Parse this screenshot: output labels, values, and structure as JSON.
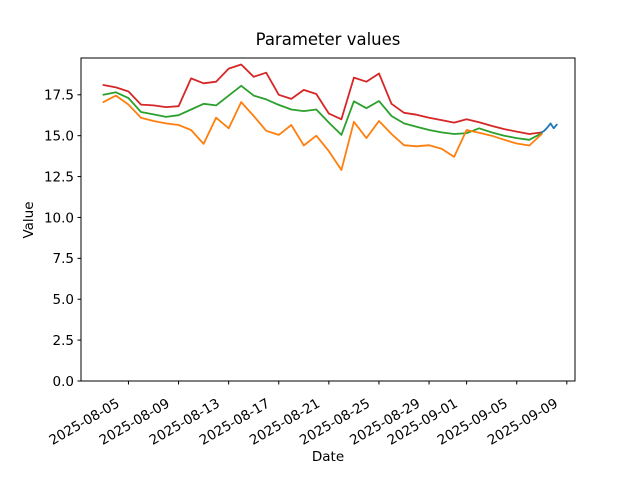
{
  "chart_data": {
    "type": "line",
    "title": "Parameter values",
    "xlabel": "Date",
    "ylabel": "Value",
    "ylim": [
      0,
      19.74
    ],
    "grid": false,
    "legend": "none",
    "background": "#ffffff",
    "axis_color": "#000000",
    "x_tick_labels": [
      "2025-08-05",
      "2025-08-09",
      "2025-08-13",
      "2025-08-17",
      "2025-08-21",
      "2025-08-25",
      "2025-08-29",
      "2025-09-01",
      "2025-09-05",
      "2025-09-09"
    ],
    "y_tick_labels": [
      "0.0",
      "2.5",
      "5.0",
      "7.5",
      "10.0",
      "12.5",
      "15.0",
      "17.5"
    ],
    "dates": [
      "2025-08-03",
      "2025-08-04",
      "2025-08-05",
      "2025-08-06",
      "2025-08-07",
      "2025-08-08",
      "2025-08-09",
      "2025-08-10",
      "2025-08-11",
      "2025-08-12",
      "2025-08-13",
      "2025-08-14",
      "2025-08-15",
      "2025-08-16",
      "2025-08-17",
      "2025-08-18",
      "2025-08-19",
      "2025-08-20",
      "2025-08-21",
      "2025-08-22",
      "2025-08-23",
      "2025-08-24",
      "2025-08-25",
      "2025-08-26",
      "2025-08-27",
      "2025-08-28",
      "2025-08-29",
      "2025-08-30",
      "2025-08-31",
      "2025-09-01",
      "2025-09-02",
      "2025-09-03",
      "2025-09-04",
      "2025-09-05",
      "2025-09-06",
      "2025-09-07"
    ],
    "series": [
      {
        "name": "red",
        "color": "#d62728",
        "values": [
          18.1,
          17.95,
          17.7,
          16.9,
          16.85,
          16.75,
          16.8,
          18.5,
          18.2,
          18.3,
          19.1,
          19.35,
          18.6,
          18.85,
          17.5,
          17.25,
          17.8,
          17.55,
          16.35,
          16.0,
          18.55,
          18.3,
          18.8,
          16.95,
          16.4,
          16.28,
          16.1,
          15.95,
          15.8,
          16.0,
          15.82,
          15.6,
          15.4,
          15.25,
          15.1,
          15.2
        ]
      },
      {
        "name": "green",
        "color": "#2ca02c",
        "values": [
          17.5,
          17.65,
          17.3,
          16.45,
          16.3,
          16.15,
          16.25,
          16.6,
          16.95,
          16.85,
          17.45,
          18.05,
          17.45,
          17.22,
          16.88,
          16.6,
          16.5,
          16.6,
          15.8,
          15.05,
          17.1,
          16.68,
          17.12,
          16.2,
          15.75,
          15.55,
          15.35,
          15.2,
          15.1,
          15.15,
          15.45,
          15.2,
          15.0,
          14.85,
          14.75,
          15.15
        ]
      },
      {
        "name": "orange",
        "color": "#ff7f0e",
        "values": [
          17.05,
          17.45,
          16.9,
          16.1,
          15.9,
          15.75,
          15.65,
          15.35,
          14.5,
          16.1,
          15.45,
          17.05,
          16.2,
          15.3,
          15.05,
          15.65,
          14.4,
          15.0,
          14.05,
          12.9,
          15.85,
          14.85,
          15.9,
          15.1,
          14.42,
          14.35,
          14.42,
          14.2,
          13.7,
          15.35,
          15.18,
          15.0,
          14.75,
          14.52,
          14.4,
          15.1
        ]
      },
      {
        "name": "blue",
        "color": "#1f77b4",
        "day_offsets": [
          35.0,
          35.2,
          35.45,
          35.7,
          35.95,
          36.2
        ],
        "values": [
          15.2,
          15.3,
          15.5,
          15.75,
          15.45,
          15.68
        ]
      }
    ]
  }
}
